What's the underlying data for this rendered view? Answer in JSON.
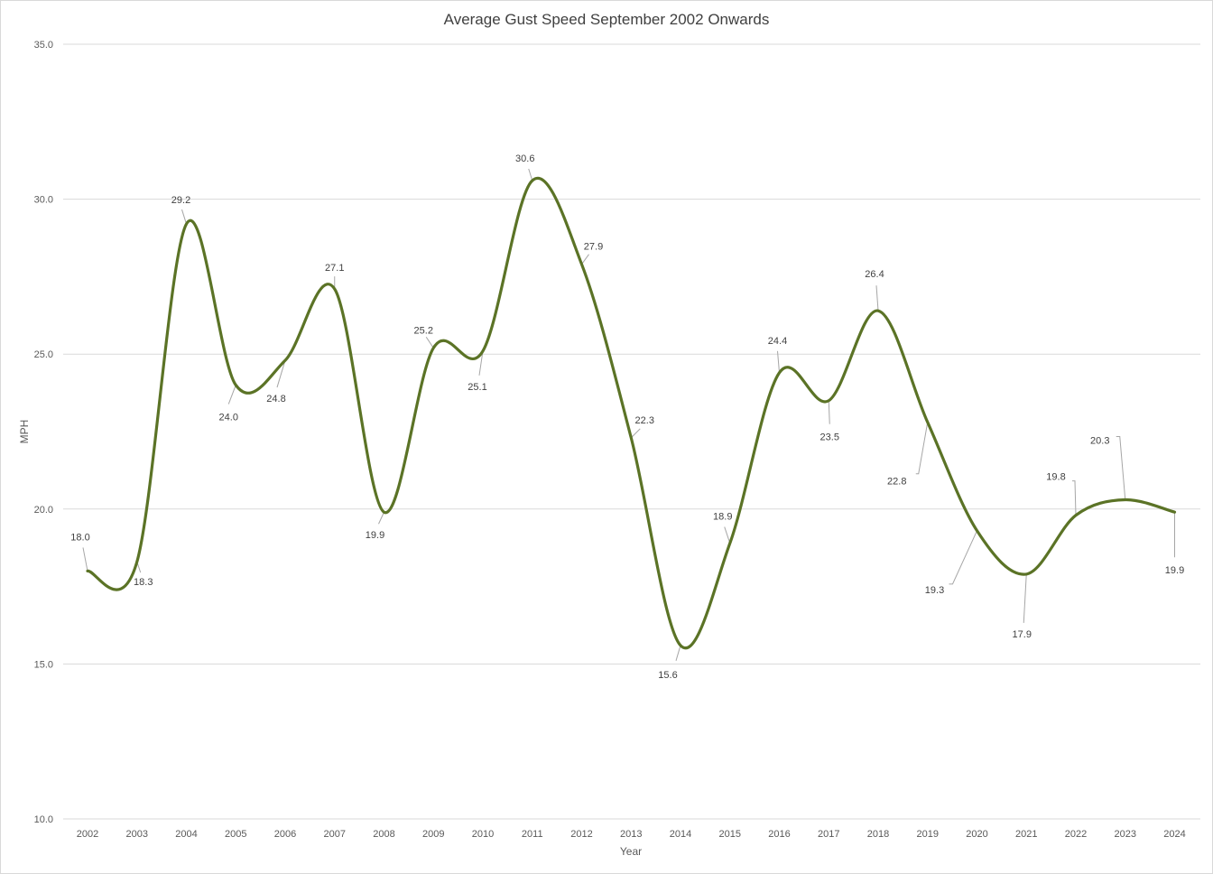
{
  "chart_data": {
    "type": "line",
    "title": "Average Gust Speed September 2002 Onwards",
    "xlabel": "Year",
    "ylabel": "MPH",
    "categories": [
      "2002",
      "2003",
      "2004",
      "2005",
      "2006",
      "2007",
      "2008",
      "2009",
      "2010",
      "2011",
      "2012",
      "2013",
      "2014",
      "2015",
      "2016",
      "2017",
      "2018",
      "2019",
      "2020",
      "2021",
      "2022",
      "2023",
      "2024"
    ],
    "series": [
      {
        "values": [
          18.0,
          18.3,
          29.2,
          24.0,
          24.8,
          27.1,
          19.9,
          25.2,
          25.1,
          30.6,
          27.9,
          22.3,
          15.6,
          18.9,
          24.4,
          23.5,
          26.4,
          22.8,
          19.3,
          17.9,
          19.8,
          20.3,
          19.9
        ]
      }
    ],
    "data_labels": [
      "18.0",
      "18.3",
      "29.2",
      "24.0",
      "24.8",
      "27.1",
      "19.9",
      "25.2",
      "25.1",
      "30.6",
      "27.9",
      "22.3",
      "15.6",
      "18.9",
      "24.4",
      "23.5",
      "26.4",
      "22.8",
      "19.3",
      "17.9",
      "19.8",
      "20.3",
      "19.9"
    ],
    "ylim": [
      10,
      35
    ],
    "yticks": [
      "10.0",
      "15.0",
      "20.0",
      "25.0",
      "30.0",
      "35.0"
    ],
    "grid": true,
    "smooth": true,
    "line_color": "#5b7326"
  }
}
